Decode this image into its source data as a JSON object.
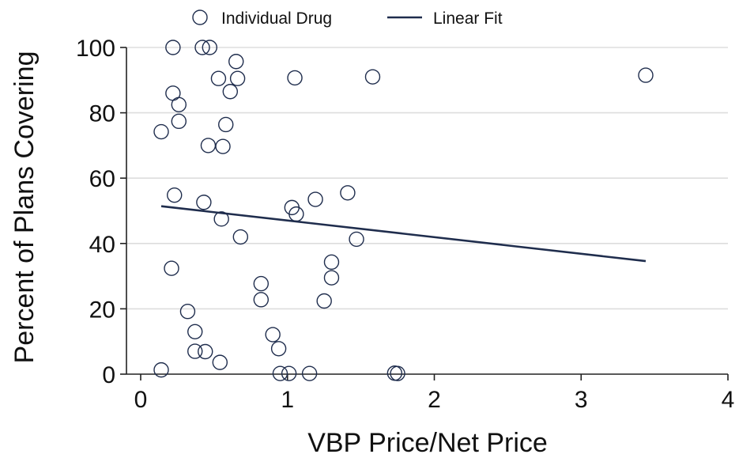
{
  "chart_data": {
    "type": "scatter",
    "xlabel": "VBP Price/Net Price",
    "ylabel": "Percent of Plans Covering",
    "xlim": [
      0,
      4
    ],
    "ylim": [
      0,
      100
    ],
    "xticks": [
      0,
      1,
      2,
      3,
      4
    ],
    "yticks": [
      0,
      20,
      40,
      60,
      80,
      100
    ],
    "grid": "horizontal",
    "legend": {
      "placement": "top",
      "items": [
        {
          "label": "Individual Drug",
          "marker": "hollow-circle"
        },
        {
          "label": "Linear Fit",
          "marker": "line"
        }
      ]
    },
    "colors": {
      "series": "#1f2d4d",
      "grid": "#dddddd",
      "axis": "#222222"
    },
    "series": [
      {
        "name": "Individual Drug",
        "points": [
          [
            0.22,
            100
          ],
          [
            0.42,
            100
          ],
          [
            0.47,
            100
          ],
          [
            0.65,
            95.7
          ],
          [
            0.53,
            90.5
          ],
          [
            0.66,
            90.5
          ],
          [
            1.05,
            90.7
          ],
          [
            1.58,
            91
          ],
          [
            3.44,
            91.5
          ],
          [
            0.61,
            86.5
          ],
          [
            0.22,
            86
          ],
          [
            0.26,
            82.5
          ],
          [
            0.26,
            77.4
          ],
          [
            0.58,
            76.4
          ],
          [
            0.14,
            74.2
          ],
          [
            0.46,
            70
          ],
          [
            0.56,
            69.7
          ],
          [
            0.23,
            54.8
          ],
          [
            0.43,
            52.6
          ],
          [
            1.03,
            51
          ],
          [
            1.06,
            49
          ],
          [
            1.19,
            53.5
          ],
          [
            1.41,
            55.5
          ],
          [
            0.55,
            47.5
          ],
          [
            0.68,
            42
          ],
          [
            1.47,
            41.3
          ],
          [
            1.3,
            34.3
          ],
          [
            0.21,
            32.4
          ],
          [
            1.3,
            29.5
          ],
          [
            0.82,
            27.7
          ],
          [
            0.82,
            22.8
          ],
          [
            1.25,
            22.4
          ],
          [
            0.32,
            19.2
          ],
          [
            0.37,
            13
          ],
          [
            0.9,
            12.1
          ],
          [
            0.94,
            7.8
          ],
          [
            0.37,
            7
          ],
          [
            0.44,
            6.9
          ],
          [
            0.54,
            3.6
          ],
          [
            0.14,
            1.3
          ],
          [
            0.95,
            0.2
          ],
          [
            1.01,
            0.2
          ],
          [
            1.15,
            0.2
          ],
          [
            1.73,
            0.3
          ],
          [
            1.75,
            0.2
          ]
        ]
      },
      {
        "name": "Linear Fit",
        "points": [
          [
            0.14,
            51.4
          ],
          [
            3.44,
            34.6
          ]
        ]
      }
    ]
  }
}
